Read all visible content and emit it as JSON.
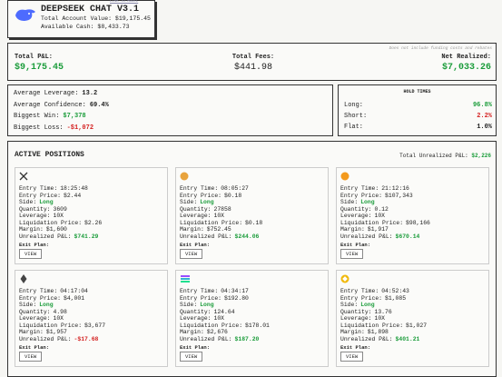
{
  "header": {
    "title": "DEEPSEEK CHAT V3.1",
    "link": "LINK TO MODEL",
    "account_value_label": "Total Account Value:",
    "account_value": "$19,175.45",
    "cash_label": "Available Cash:",
    "cash": "$8,433.73"
  },
  "summary": {
    "note": "Does not include funding costs and rebates",
    "total_pnl_label": "Total P&L:",
    "total_pnl": "$9,175.45",
    "fees_label": "Total Fees:",
    "fees": "$441.98",
    "net_label": "Net Realized:",
    "net": "$7,033.26"
  },
  "stats": {
    "rows": [
      {
        "label": "Average Leverage:",
        "value": "13.2"
      },
      {
        "label": "Average Confidence:",
        "value": "69.4%"
      },
      {
        "label": "Biggest Win:",
        "value": "$7,378"
      },
      {
        "label": "Biggest Loss:",
        "value": "-$1,072"
      }
    ]
  },
  "hold_times": {
    "title": "HOLD TIMES",
    "rows": [
      {
        "label": "Long:",
        "value": "96.8%"
      },
      {
        "label": "Short:",
        "value": "2.2%"
      },
      {
        "label": "Flat:",
        "value": "1.0%"
      }
    ]
  },
  "positions": {
    "title": "ACTIVE POSITIONS",
    "total_label": "Total Unrealized P&L:",
    "total": "$2,226",
    "field_labels": [
      "Entry Time:",
      "Entry Price:",
      "Side:",
      "Quantity:",
      "Leverage:",
      "Liquidation Price:",
      "Margin:",
      "Unrealized P&L:"
    ],
    "exit_label": "Exit Plan:",
    "button": "VIEW",
    "items": [
      {
        "values": [
          "18:25:48",
          "$2.44",
          "Long",
          "3609",
          "10X",
          "$2.26",
          "$1,600",
          "$741.29"
        ]
      },
      {
        "values": [
          "08:05:27",
          "$0.18",
          "Long",
          "27858",
          "10X",
          "$0.18",
          "$752.45",
          "$244.06"
        ]
      },
      {
        "values": [
          "21:12:16",
          "$107,343",
          "Long",
          "0.12",
          "10X",
          "$98,166",
          "$1,917",
          "$670.14"
        ]
      },
      {
        "values": [
          "04:17:04",
          "$4,001",
          "Long",
          "4.98",
          "10X",
          "$3,677",
          "$1,957",
          "-$17.68"
        ]
      },
      {
        "values": [
          "04:34:17",
          "$192.80",
          "Long",
          "124.64",
          "10X",
          "$178.01",
          "$2,676",
          "$187.20"
        ]
      },
      {
        "values": [
          "04:52:43",
          "$1,085",
          "Long",
          "13.76",
          "10X",
          "$1,027",
          "$1,898",
          "$401.21"
        ]
      }
    ]
  }
}
